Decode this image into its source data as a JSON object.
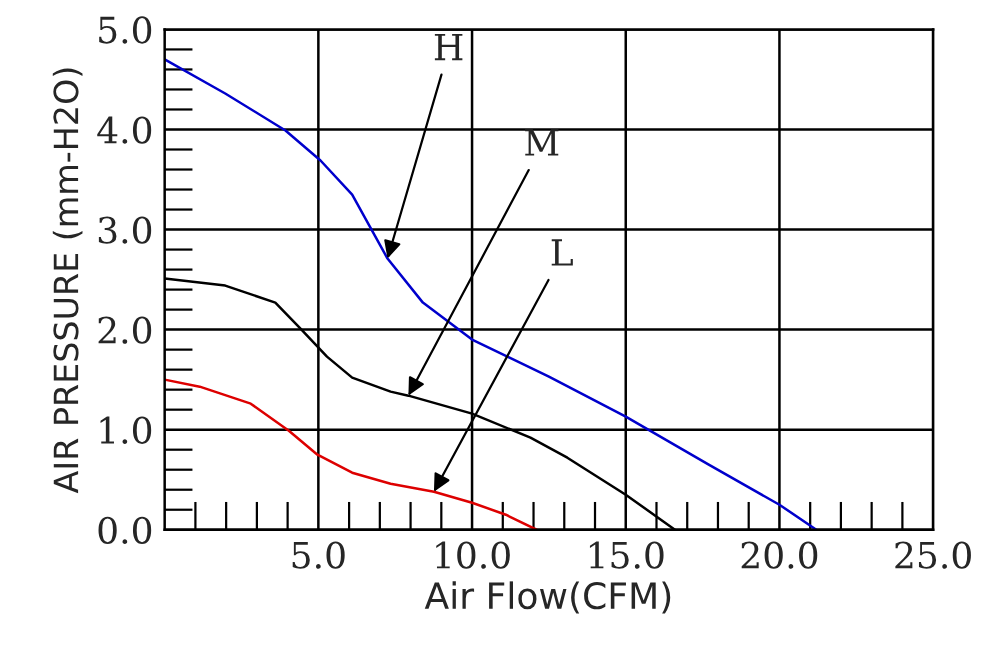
{
  "chart_data": {
    "type": "line",
    "xlabel": "Air Flow(CFM)",
    "ylabel": "AIR PRESSURE (mm-H2O)",
    "xlim": [
      0,
      25
    ],
    "ylim": [
      0,
      5
    ],
    "xticks": [
      {
        "value": 5,
        "label": "5.0"
      },
      {
        "value": 10,
        "label": "10.0"
      },
      {
        "value": 15,
        "label": "15.0"
      },
      {
        "value": 20,
        "label": "20.0"
      },
      {
        "value": 25,
        "label": "25.0"
      },
      {
        "value": 1,
        "label": null
      },
      {
        "value": 2,
        "label": null
      },
      {
        "value": 3,
        "label": null
      },
      {
        "value": 4,
        "label": null
      },
      {
        "value": 6,
        "label": null
      },
      {
        "value": 7,
        "label": null
      },
      {
        "value": 8,
        "label": null
      },
      {
        "value": 9,
        "label": null
      },
      {
        "value": 11,
        "label": null
      },
      {
        "value": 12,
        "label": null
      },
      {
        "value": 13,
        "label": null
      },
      {
        "value": 14,
        "label": null
      },
      {
        "value": 16,
        "label": null
      },
      {
        "value": 17,
        "label": null
      },
      {
        "value": 18,
        "label": null
      },
      {
        "value": 19,
        "label": null
      },
      {
        "value": 21,
        "label": null
      },
      {
        "value": 22,
        "label": null
      },
      {
        "value": 23,
        "label": null
      },
      {
        "value": 24,
        "label": null
      }
    ],
    "yticks": [
      {
        "value": 0,
        "label": "0.0"
      },
      {
        "value": 1,
        "label": "1.0"
      },
      {
        "value": 2,
        "label": "2.0"
      },
      {
        "value": 3,
        "label": "3.0"
      },
      {
        "value": 4,
        "label": "4.0"
      },
      {
        "value": 5,
        "label": "5.0"
      },
      {
        "value": 0.2,
        "label": null
      },
      {
        "value": 0.4,
        "label": null
      },
      {
        "value": 0.6,
        "label": null
      },
      {
        "value": 0.8,
        "label": null
      },
      {
        "value": 1.2,
        "label": null
      },
      {
        "value": 1.4,
        "label": null
      },
      {
        "value": 1.6,
        "label": null
      },
      {
        "value": 1.8,
        "label": null
      },
      {
        "value": 2.2,
        "label": null
      },
      {
        "value": 2.4,
        "label": null
      },
      {
        "value": 2.6,
        "label": null
      },
      {
        "value": 2.8,
        "label": null
      },
      {
        "value": 3.2,
        "label": null
      },
      {
        "value": 3.4,
        "label": null
      },
      {
        "value": 3.6,
        "label": null
      },
      {
        "value": 3.8,
        "label": null
      },
      {
        "value": 4.2,
        "label": null
      },
      {
        "value": 4.4,
        "label": null
      },
      {
        "value": 4.6,
        "label": null
      },
      {
        "value": 4.8,
        "label": null
      }
    ],
    "grid": true,
    "marker": "none",
    "line_style": "solid",
    "series": [
      {
        "color": "#0000cc",
        "x": [
          0,
          1.97,
          3.93,
          5.07,
          6.1,
          7.25,
          8.4,
          10,
          12.5,
          15,
          17.7,
          20,
          21.2
        ],
        "values": [
          4.7,
          4.36,
          3.99,
          3.69,
          3.35,
          2.71,
          2.27,
          1.9,
          1.53,
          1.13,
          0.65,
          0.25,
          0
        ]
      },
      {
        "color": "#000000",
        "x": [
          0,
          1.97,
          3.6,
          4.45,
          5.28,
          6.1,
          7.35,
          7.93,
          10,
          11.9,
          13.1,
          15,
          16.6
        ],
        "values": [
          2.51,
          2.44,
          2.27,
          2.0,
          1.73,
          1.52,
          1.38,
          1.34,
          1.16,
          0.92,
          0.72,
          0.35,
          0
        ]
      },
      {
        "color": "#dd0000",
        "x": [
          0,
          1.14,
          2.8,
          4.04,
          4.97,
          6.1,
          7.35,
          8.76,
          10,
          11.1,
          12.1
        ],
        "values": [
          1.5,
          1.43,
          1.26,
          0.99,
          0.75,
          0.57,
          0.46,
          0.38,
          0.27,
          0.15,
          0
        ]
      }
    ],
    "annotations": [
      {
        "text": "H",
        "x": 7.25,
        "y": 2.71
      },
      {
        "text": "M",
        "x": 7.93,
        "y": 1.34
      },
      {
        "text": "L",
        "x": 8.76,
        "y": 0.38
      }
    ]
  }
}
